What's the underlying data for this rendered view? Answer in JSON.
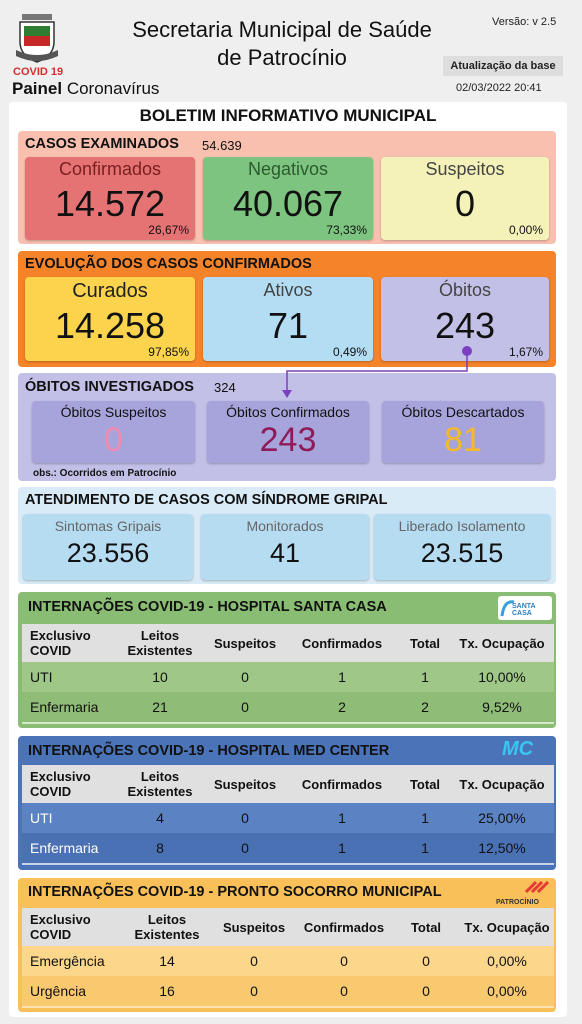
{
  "header": {
    "badge": "COVID 19",
    "painel_bold": "Painel",
    "painel_rest": " Coronavírus",
    "title_line1": "Secretaria Municipal de Saúde",
    "title_line2": "de Patrocínio",
    "version": "Versão: v 2.5",
    "update_button": "Atualização da base",
    "update_date": "02/03/2022 20:41"
  },
  "bulletin_title": "BOLETIM INFORMATIVO MUNICIPAL",
  "examined": {
    "title": "CASOS EXAMINADOS",
    "count": "54.639",
    "cards": [
      {
        "label": "Confirmados",
        "value": "14.572",
        "pct": "26,67%"
      },
      {
        "label": "Negativos",
        "value": "40.067",
        "pct": "73,33%"
      },
      {
        "label": "Suspeitos",
        "value": "0",
        "pct": "0,00%"
      }
    ]
  },
  "evolution": {
    "title": "EVOLUÇÃO DOS CASOS CONFIRMADOS",
    "cards": [
      {
        "label": "Curados",
        "value": "14.258",
        "pct": "97,85%"
      },
      {
        "label": "Ativos",
        "value": "71",
        "pct": "0,49%"
      },
      {
        "label": "Óbitos",
        "value": "243",
        "pct": "1,67%"
      }
    ]
  },
  "deaths": {
    "title": "ÓBITOS INVESTIGADOS",
    "count": "324",
    "cards": [
      {
        "label": "Óbitos Suspeitos",
        "value": "0"
      },
      {
        "label": "Óbitos Confirmados",
        "value": "243"
      },
      {
        "label": "Óbitos Descartados",
        "value": "81"
      }
    ],
    "note": "obs.: Ocorridos em Patrocínio"
  },
  "flu": {
    "title": "ATENDIMENTO DE CASOS COM SÍNDROME GRIPAL",
    "cards": [
      {
        "label": "Sintomas Gripais",
        "value": "23.556"
      },
      {
        "label": "Monitorados",
        "value": "41"
      },
      {
        "label": "Liberado Isolamento",
        "value": "23.515"
      }
    ]
  },
  "hospitals": [
    {
      "title": "INTERNAÇÕES COVID-19 - HOSPITAL SANTA CASA",
      "logo_text": "SANTA CASA",
      "columns": [
        "Exclusivo COVID",
        "Leitos Existentes",
        "Suspeitos",
        "Confirmados",
        "Total",
        "Tx. Ocupação"
      ],
      "rows": [
        [
          "UTI",
          "10",
          "0",
          "1",
          "1",
          "10,00%"
        ],
        [
          "Enfermaria",
          "21",
          "0",
          "2",
          "2",
          "9,52%"
        ]
      ]
    },
    {
      "title": "INTERNAÇÕES COVID-19 - HOSPITAL MED CENTER",
      "logo_text": "MC",
      "columns": [
        "Exclusivo COVID",
        "Leitos Existentes",
        "Suspeitos",
        "Confirmados",
        "Total",
        "Tx. Ocupação"
      ],
      "rows": [
        [
          "UTI",
          "4",
          "0",
          "1",
          "1",
          "25,00%"
        ],
        [
          "Enfermaria",
          "8",
          "0",
          "1",
          "1",
          "12,50%"
        ]
      ]
    },
    {
      "title": "INTERNAÇÕES COVID-19 - PRONTO SOCORRO MUNICIPAL",
      "logo_text": "PATROCÍNIO",
      "columns": [
        "Exclusivo COVID",
        "Leitos Existentes",
        "Suspeitos",
        "Confirmados",
        "Total",
        "Tx. Ocupação"
      ],
      "rows": [
        [
          "Emergência",
          "14",
          "0",
          "0",
          "0",
          "0,00%"
        ],
        [
          "Urgência",
          "16",
          "0",
          "0",
          "0",
          "0,00%"
        ]
      ]
    }
  ],
  "colors": {
    "confirmed_bg": "#e57373",
    "negative_bg": "#7cc47f",
    "suspect_bg": "#f4f2b8",
    "evolution_bg": "#f5832a",
    "cured_bg": "#fbd34d",
    "active_bg": "#b3ddf2",
    "deaths_bg": "#c3c0e8",
    "santa_casa": "#89bd73",
    "med_center": "#4b74b8",
    "pronto_socorro": "#f9c05a"
  }
}
